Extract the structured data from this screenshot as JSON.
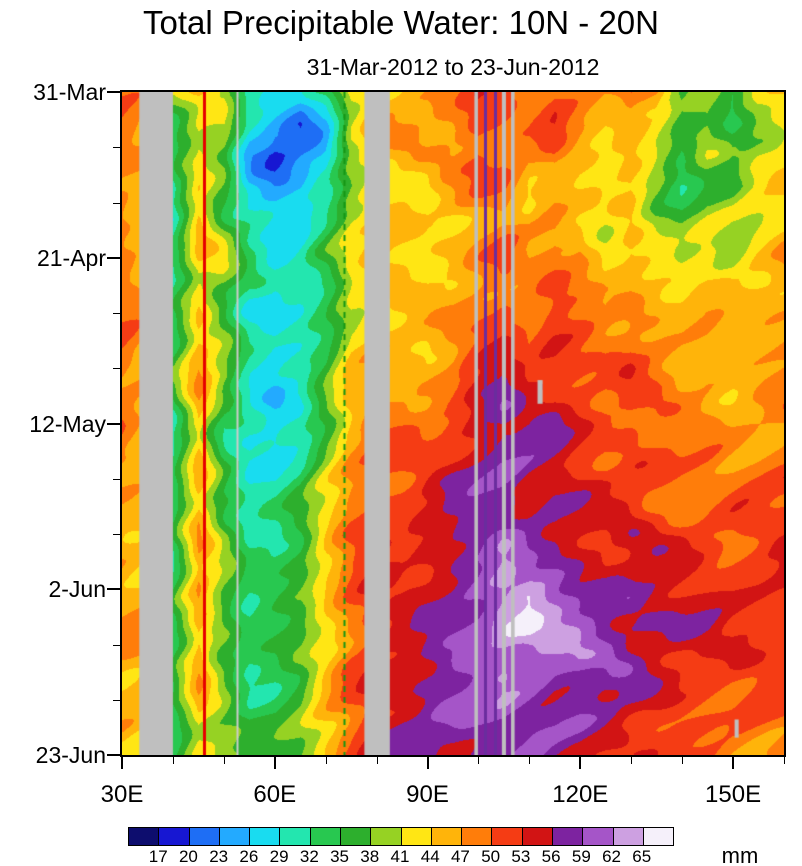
{
  "page": {
    "title": "Total Precipitable Water: 10N - 20N",
    "subtitle": "31-Mar-2012 to 23-Jun-2012",
    "units_label": "mm"
  },
  "chart_data": {
    "type": "heatmap",
    "title": "Total Precipitable Water: 10N - 20N",
    "subtitle": "31-Mar-2012 to 23-Jun-2012",
    "value_units": "mm",
    "x_axis": {
      "range_deg_east": [
        30,
        160
      ],
      "major_ticks_deg": [
        30,
        60,
        90,
        120,
        150
      ],
      "tick_labels": [
        "30E",
        "60E",
        "90E",
        "120E",
        "150E"
      ],
      "minor_tick_step_deg": 10
    },
    "y_axis": {
      "range_days_after_31mar": [
        0,
        84
      ],
      "major_tick_days": [
        0,
        21,
        42,
        63,
        84
      ],
      "tick_labels": [
        "31-Mar",
        "21-Apr",
        "12-May",
        "2-Jun",
        "23-Jun"
      ],
      "minor_tick_step_days": 7,
      "direction": "top-to-bottom"
    },
    "colorbar": {
      "levels_mm": [
        17,
        20,
        23,
        26,
        29,
        32,
        35,
        38,
        41,
        44,
        47,
        50,
        53,
        56,
        59,
        62,
        65
      ],
      "colors": [
        "#0d0d6e",
        "#1717d2",
        "#1e6ef5",
        "#23aaff",
        "#19dcf0",
        "#23e6af",
        "#28c850",
        "#2daf2d",
        "#96d223",
        "#ffe614",
        "#ffb40a",
        "#ff7d0a",
        "#f53c14",
        "#d21414",
        "#7d23a0",
        "#a555c8",
        "#cda0e1",
        "#f5f0fa"
      ]
    },
    "grid": {
      "lons_deg_east": [
        30,
        35,
        40,
        45,
        50,
        55,
        60,
        65,
        70,
        75,
        80,
        85,
        90,
        95,
        100,
        105,
        110,
        115,
        120,
        125,
        130,
        135,
        140,
        145,
        150,
        155,
        160
      ],
      "days_after_31mar": [
        0,
        4,
        8,
        12,
        16,
        20,
        24,
        28,
        32,
        36,
        40,
        44,
        48,
        52,
        56,
        60,
        64,
        68,
        72,
        76,
        80,
        84
      ],
      "values_mm": [
        [
          48,
          46,
          40,
          44,
          42,
          32,
          30,
          28,
          32,
          44,
          46,
          46,
          45,
          47,
          52,
          51,
          48,
          50,
          47,
          46,
          50,
          47,
          38,
          40,
          36,
          42,
          45
        ],
        [
          48,
          46,
          36,
          44,
          42,
          28,
          24,
          20,
          28,
          42,
          46,
          46,
          46,
          48,
          52,
          50,
          48,
          50,
          46,
          44,
          48,
          44,
          36,
          38,
          34,
          40,
          44
        ],
        [
          49,
          46,
          34,
          42,
          40,
          25,
          19,
          23,
          26,
          40,
          45,
          45,
          44,
          46,
          50,
          49,
          47,
          49,
          45,
          43,
          46,
          42,
          36,
          40,
          38,
          42,
          44
        ],
        [
          48,
          46,
          32,
          44,
          38,
          28,
          24,
          24,
          28,
          38,
          44,
          44,
          43,
          45,
          48,
          50,
          46,
          48,
          44,
          42,
          45,
          40,
          34,
          38,
          36,
          40,
          43
        ],
        [
          48,
          45,
          30,
          46,
          36,
          30,
          26,
          27,
          32,
          40,
          43,
          43,
          42,
          44,
          47,
          49,
          45,
          47,
          44,
          43,
          46,
          40,
          38,
          40,
          40,
          42,
          44
        ],
        [
          49,
          46,
          34,
          44,
          40,
          32,
          28,
          30,
          36,
          42,
          44,
          44,
          44,
          46,
          49,
          50,
          47,
          49,
          50,
          44,
          45,
          40,
          38,
          42,
          41,
          43,
          45
        ],
        [
          48,
          45,
          33,
          42,
          38,
          30,
          27,
          29,
          34,
          42,
          44,
          44,
          44,
          46,
          49,
          51,
          48,
          50,
          48,
          46,
          47,
          45,
          42,
          43,
          42,
          44,
          46
        ],
        [
          48,
          45,
          32,
          44,
          36,
          28,
          26,
          28,
          33,
          42,
          45,
          45,
          45,
          47,
          50,
          52,
          49,
          51,
          49,
          47,
          48,
          46,
          44,
          45,
          44,
          45,
          47
        ],
        [
          49,
          46,
          34,
          45,
          38,
          30,
          28,
          30,
          35,
          44,
          46,
          46,
          46,
          48,
          52,
          54,
          50,
          52,
          50,
          48,
          49,
          47,
          45,
          46,
          45,
          46,
          47
        ],
        [
          49,
          46,
          36,
          46,
          40,
          32,
          30,
          32,
          37,
          45,
          47,
          47,
          47,
          49,
          53,
          55,
          52,
          53,
          51,
          49,
          50,
          48,
          46,
          47,
          46,
          47,
          48
        ],
        [
          48,
          46,
          34,
          46,
          34,
          30,
          27,
          30,
          38,
          46,
          48,
          48,
          48,
          50,
          54,
          56,
          54,
          54,
          52,
          50,
          51,
          49,
          48,
          48,
          47,
          48,
          49
        ],
        [
          48,
          46,
          33,
          45,
          33,
          28,
          27,
          31,
          39,
          46,
          49,
          49,
          49,
          52,
          55,
          57,
          55,
          55,
          53,
          51,
          52,
          50,
          49,
          49,
          48,
          48,
          49
        ],
        [
          48,
          46,
          34,
          46,
          36,
          30,
          30,
          33,
          40,
          47,
          50,
          50,
          52,
          54,
          56,
          58,
          56,
          56,
          54,
          52,
          52,
          51,
          50,
          50,
          49,
          49,
          50
        ],
        [
          47,
          46,
          33,
          46,
          37,
          31,
          31,
          34,
          41,
          48,
          51,
          51,
          53,
          55,
          57,
          59,
          57,
          57,
          55,
          53,
          53,
          52,
          51,
          50,
          50,
          50,
          50
        ],
        [
          47,
          45,
          34,
          46,
          38,
          32,
          32,
          35,
          42,
          48,
          52,
          52,
          54,
          56,
          58,
          60,
          58,
          58,
          56,
          54,
          54,
          53,
          52,
          51,
          50,
          50,
          51
        ],
        [
          46,
          45,
          33,
          45,
          37,
          31,
          33,
          36,
          43,
          49,
          53,
          53,
          55,
          57,
          59,
          62,
          60,
          59,
          57,
          55,
          55,
          54,
          53,
          52,
          51,
          51,
          52
        ],
        [
          46,
          45,
          34,
          46,
          38,
          32,
          34,
          37,
          44,
          50,
          54,
          54,
          56,
          58,
          60,
          64,
          66,
          62,
          58,
          56,
          56,
          55,
          54,
          53,
          52,
          52,
          52
        ],
        [
          46,
          45,
          33,
          45,
          37,
          31,
          33,
          36,
          43,
          50,
          54,
          55,
          56,
          58,
          61,
          66,
          67,
          63,
          60,
          58,
          57,
          56,
          55,
          54,
          52,
          52,
          53
        ],
        [
          46,
          45,
          34,
          46,
          38,
          33,
          34,
          37,
          44,
          51,
          55,
          55,
          57,
          59,
          60,
          62,
          61,
          60,
          59,
          57,
          56,
          55,
          54,
          53,
          52,
          52,
          52
        ],
        [
          45,
          44,
          33,
          45,
          39,
          34,
          35,
          38,
          45,
          51,
          55,
          56,
          57,
          58,
          59,
          60,
          59,
          58,
          58,
          56,
          55,
          54,
          53,
          52,
          51,
          51,
          51
        ],
        [
          45,
          44,
          34,
          44,
          40,
          35,
          36,
          39,
          45,
          50,
          54,
          56,
          57,
          58,
          58,
          59,
          58,
          57,
          57,
          55,
          54,
          53,
          52,
          51,
          50,
          50,
          50
        ],
        [
          44,
          43,
          35,
          43,
          41,
          36,
          37,
          40,
          46,
          50,
          53,
          55,
          56,
          57,
          57,
          58,
          57,
          56,
          56,
          54,
          53,
          52,
          51,
          50,
          49,
          49,
          49
        ]
      ]
    },
    "missing_data_color": "#bfbfbf",
    "missing_data_lon_bands_deg": [
      [
        33.4,
        40.0
      ],
      [
        77.6,
        82.6
      ],
      [
        99.2,
        99.9
      ],
      [
        104.6,
        105.4
      ],
      [
        106.4,
        107.1
      ]
    ],
    "missing_data_patches": [
      {
        "lon0": 111.6,
        "lon1": 112.6,
        "day0": 36.5,
        "day1": 39.5
      },
      {
        "lon0": 150.3,
        "lon1": 151.1,
        "day0": 79.5,
        "day1": 81.8
      }
    ],
    "reference_lines": [
      {
        "lon_deg_east": 46.2,
        "style": "solid",
        "color": "#e60000",
        "width": 3
      },
      {
        "lon_deg_east": 52.6,
        "style": "solid",
        "color": "#cccccc",
        "width": 2
      },
      {
        "lon_deg_east": 73.6,
        "style": "dashed",
        "color": "#149614",
        "width": 2
      },
      {
        "lon_deg_east": 101.2,
        "style": "solid",
        "color": "#6a2d9e",
        "width": 3
      },
      {
        "lon_deg_east": 103.3,
        "style": "solid",
        "color": "#6a2d9e",
        "width": 3
      }
    ]
  }
}
